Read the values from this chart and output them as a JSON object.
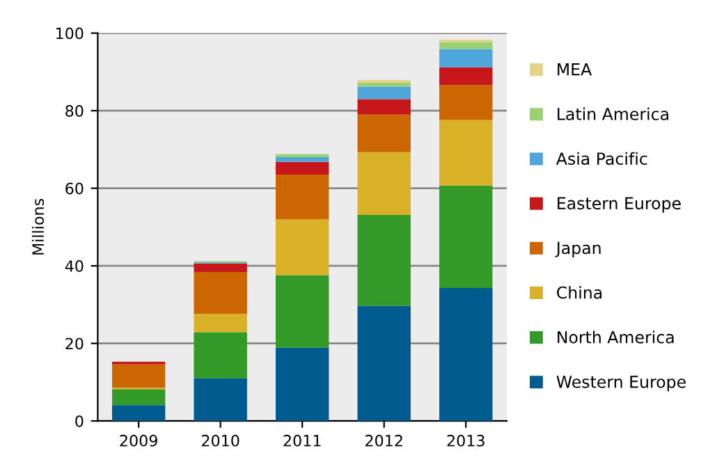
{
  "chart_data": {
    "type": "bar",
    "stacked": true,
    "ylabel": "Millions",
    "categories": [
      "2009",
      "2010",
      "2011",
      "2012",
      "2013"
    ],
    "series": [
      {
        "name": "Western Europe",
        "color": "#005b8f",
        "values": [
          4.1,
          11.0,
          18.9,
          29.7,
          34.3
        ]
      },
      {
        "name": "North America",
        "color": "#339a27",
        "values": [
          4.1,
          11.9,
          18.7,
          23.4,
          26.4
        ]
      },
      {
        "name": "China",
        "color": "#d8b127",
        "values": [
          0.4,
          4.7,
          14.4,
          16.2,
          16.9
        ]
      },
      {
        "name": "Japan",
        "color": "#cc6600",
        "values": [
          6.0,
          10.8,
          11.5,
          9.7,
          9.0
        ]
      },
      {
        "name": "Eastern Europe",
        "color": "#c8171b",
        "values": [
          0.7,
          2.2,
          3.3,
          4.0,
          4.6
        ]
      },
      {
        "name": "Asia Pacific",
        "color": "#4ea6db",
        "values": [
          0,
          0.3,
          1.2,
          3.2,
          4.7
        ]
      },
      {
        "name": "Latin America",
        "color": "#99d173",
        "values": [
          0,
          0.3,
          0.8,
          1.0,
          1.8
        ]
      },
      {
        "name": "MEA",
        "color": "#e6d38a",
        "values": [
          0,
          0,
          0,
          0.7,
          0.6
        ]
      }
    ],
    "ylim": [
      0,
      100
    ],
    "yticks": [
      0,
      20,
      40,
      60,
      80,
      100
    ],
    "grid": "y",
    "legend": "right"
  }
}
